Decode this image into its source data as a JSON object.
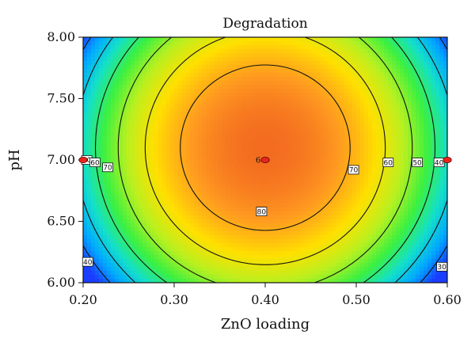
{
  "chart_data": {
    "type": "heatmap",
    "subtype": "contour",
    "title": "Degradation",
    "xlabel": "ZnO loading",
    "ylabel": "pH",
    "xlim": [
      0.2,
      0.6
    ],
    "ylim": [
      6.0,
      8.0
    ],
    "x_ticks": [
      "0.20",
      "0.30",
      "0.40",
      "0.50",
      "0.60"
    ],
    "y_ticks": [
      "6.00",
      "6.50",
      "7.00",
      "7.50",
      "8.00"
    ],
    "contour_levels": [
      30,
      40,
      50,
      60,
      70,
      80
    ],
    "contour_labels": [
      {
        "text": "50",
        "x": 0.204,
        "y": 7.0
      },
      {
        "text": "60",
        "x": 0.213,
        "y": 6.98
      },
      {
        "text": "70",
        "x": 0.227,
        "y": 6.94
      },
      {
        "text": "80",
        "x": 0.396,
        "y": 6.58
      },
      {
        "text": "70",
        "x": 0.497,
        "y": 6.92
      },
      {
        "text": "60",
        "x": 0.535,
        "y": 6.98
      },
      {
        "text": "50",
        "x": 0.567,
        "y": 6.98
      },
      {
        "text": "40",
        "x": 0.591,
        "y": 6.98
      },
      {
        "text": "40",
        "x": 0.205,
        "y": 6.17
      },
      {
        "text": "30",
        "x": 0.594,
        "y": 6.13
      }
    ],
    "design_points": [
      {
        "x": 0.2,
        "y": 7.0
      },
      {
        "x": 0.4,
        "y": 7.0,
        "label": "6"
      },
      {
        "x": 0.6,
        "y": 7.0
      }
    ],
    "colormap": [
      "#1a3dff",
      "#00a8ff",
      "#14e0c8",
      "#3cf040",
      "#b8f020",
      "#ffe000",
      "#ff9a20",
      "#f06020"
    ]
  }
}
